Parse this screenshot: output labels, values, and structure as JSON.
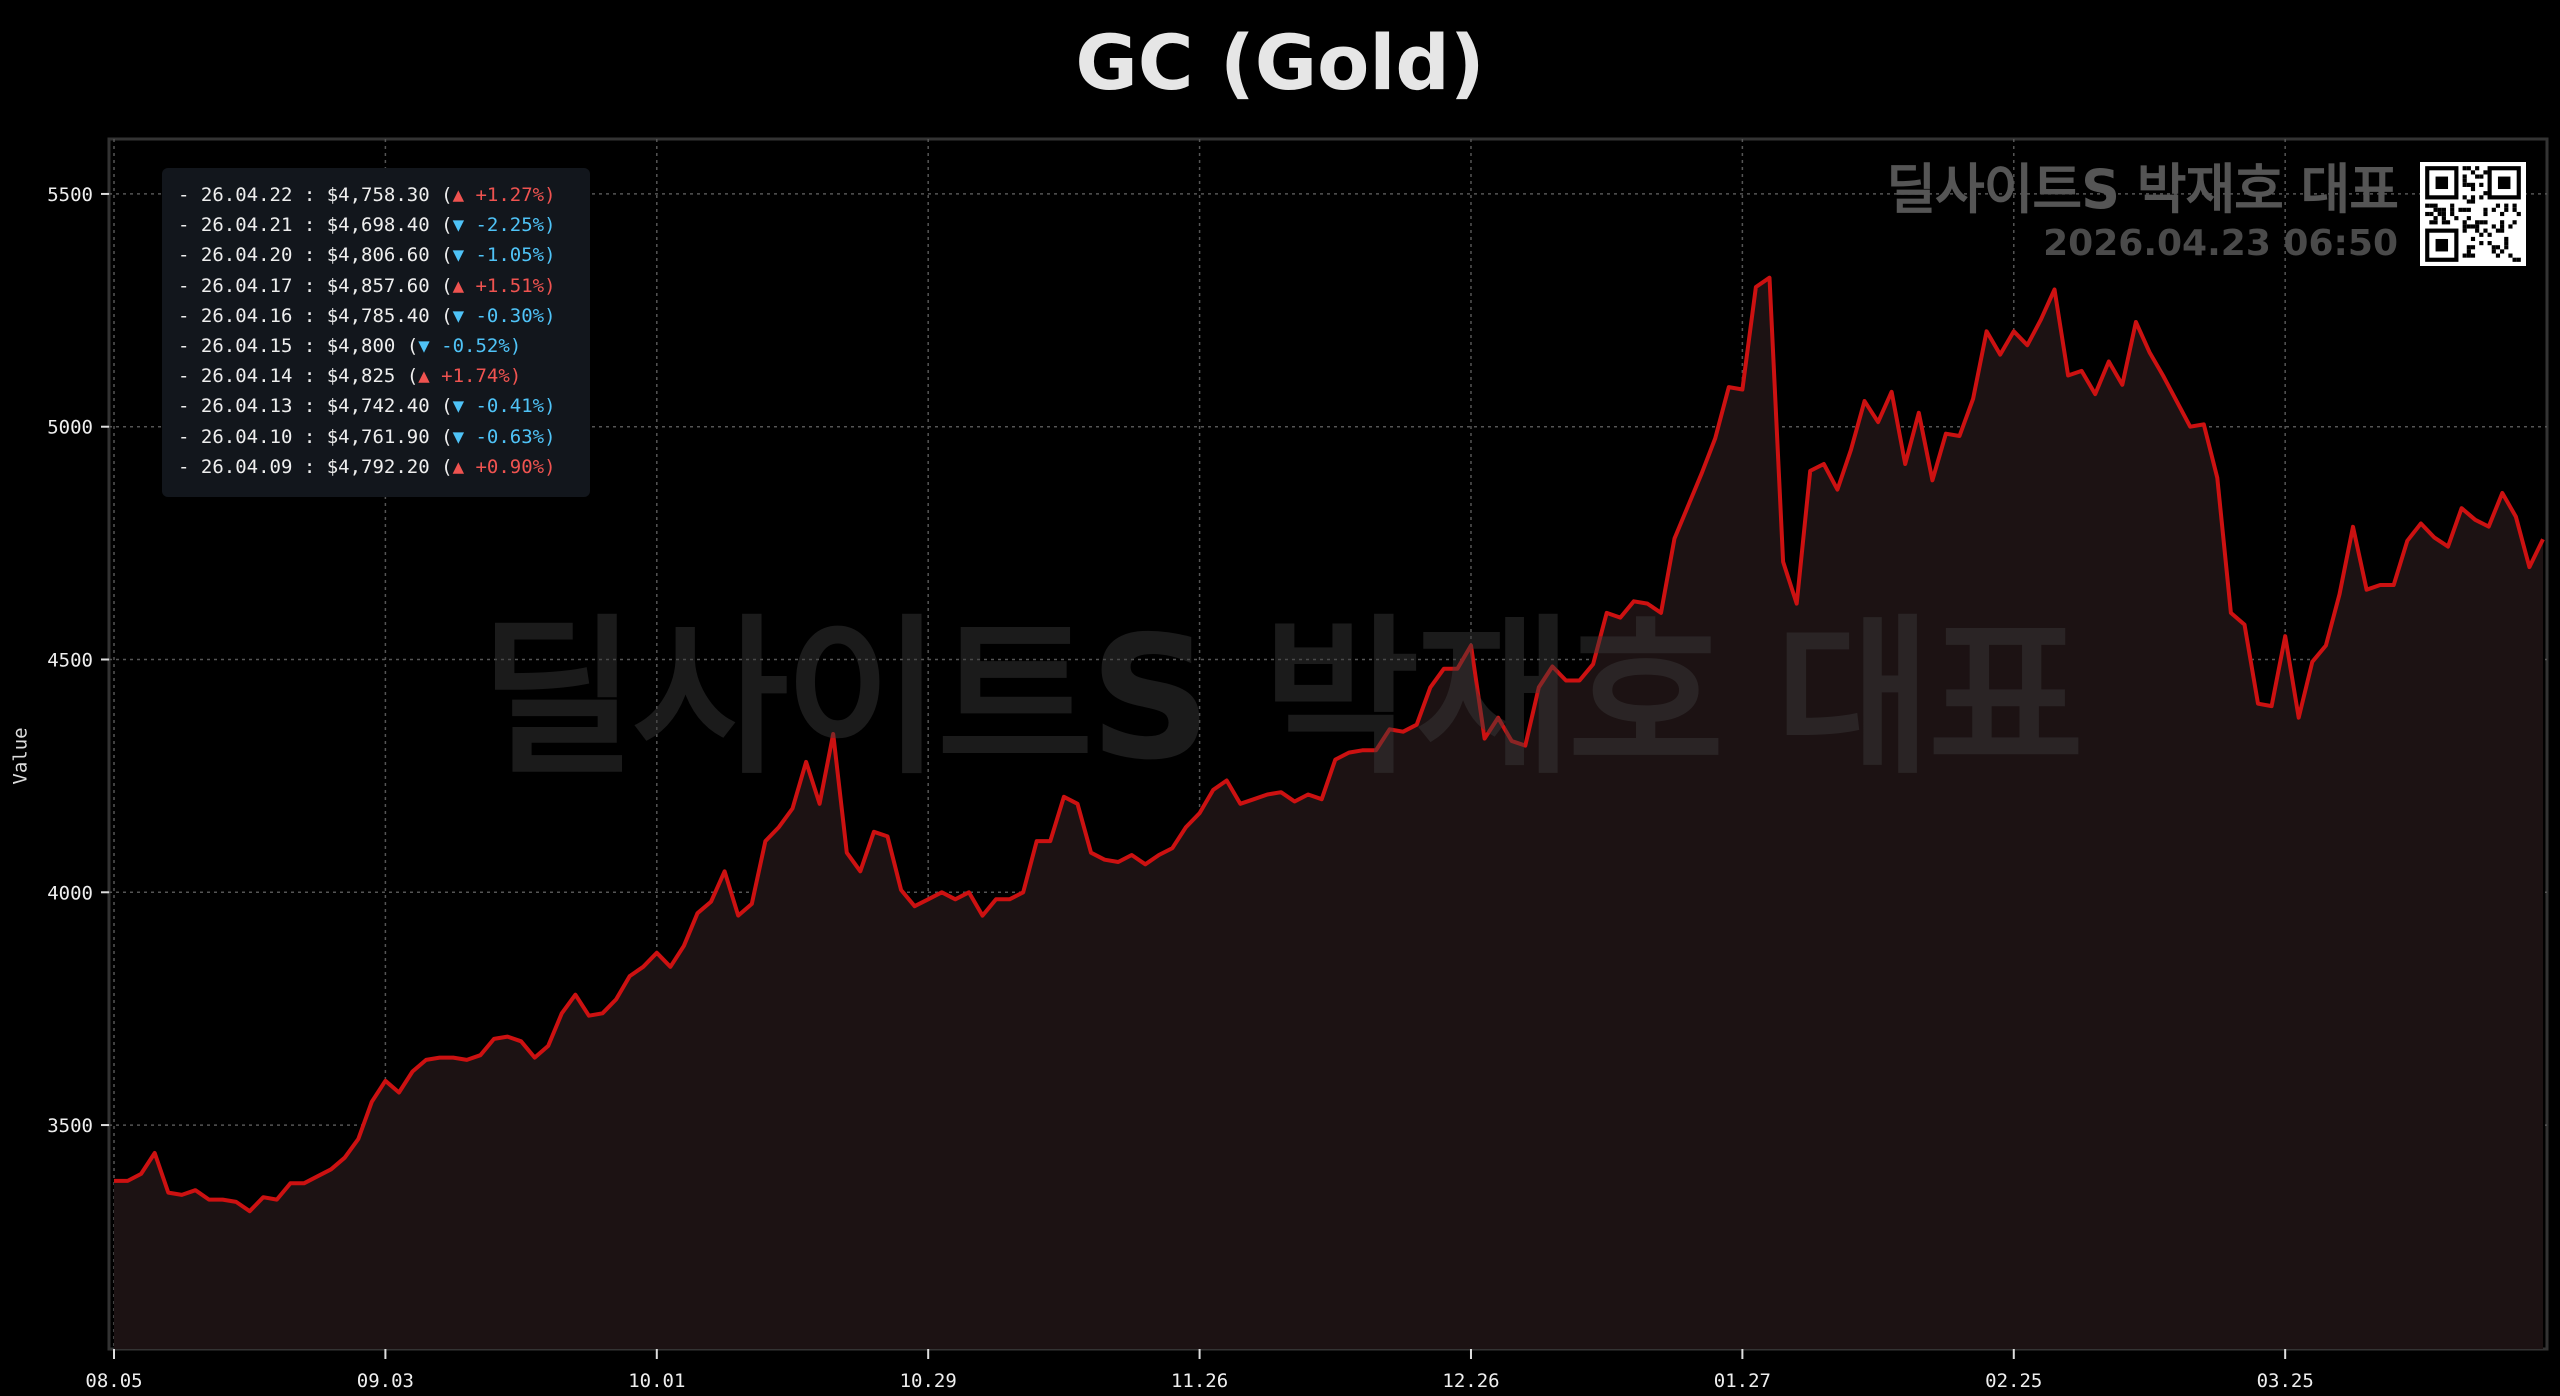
{
  "title": "GC (Gold)",
  "watermark": {
    "name": "딜사이트S 박재호 대표",
    "timestamp": "2026.04.23 06:50"
  },
  "legend": [
    {
      "date": "26.04.22",
      "price": "$4,758.30",
      "dir": "up",
      "arrow": "▲",
      "change": "+1.27%"
    },
    {
      "date": "26.04.21",
      "price": "$4,698.40",
      "dir": "down",
      "arrow": "▼",
      "change": "-2.25%"
    },
    {
      "date": "26.04.20",
      "price": "$4,806.60",
      "dir": "down",
      "arrow": "▼",
      "change": "-1.05%"
    },
    {
      "date": "26.04.17",
      "price": "$4,857.60",
      "dir": "up",
      "arrow": "▲",
      "change": "+1.51%"
    },
    {
      "date": "26.04.16",
      "price": "$4,785.40",
      "dir": "down",
      "arrow": "▼",
      "change": "-0.30%"
    },
    {
      "date": "26.04.15",
      "price": "$4,800",
      "dir": "down",
      "arrow": "▼",
      "change": "-0.52%"
    },
    {
      "date": "26.04.14",
      "price": "$4,825",
      "dir": "up",
      "arrow": "▲",
      "change": "+1.74%"
    },
    {
      "date": "26.04.13",
      "price": "$4,742.40",
      "dir": "down",
      "arrow": "▼",
      "change": "-0.41%"
    },
    {
      "date": "26.04.10",
      "price": "$4,761.90",
      "dir": "down",
      "arrow": "▼",
      "change": "-0.63%"
    },
    {
      "date": "26.04.09",
      "price": "$4,792.20",
      "dir": "up",
      "arrow": "▲",
      "change": "+0.90%"
    }
  ],
  "colors": {
    "line": "#cc1111",
    "fill": "#1c1213",
    "up": "#ef5350",
    "down": "#4fc3f7",
    "grid": "#555555"
  },
  "chart_data": {
    "type": "area",
    "title": "GC (Gold)",
    "xlabel": "",
    "ylabel": "Value",
    "ylim": [
      3019,
      5618
    ],
    "yticks": [
      3500,
      4000,
      4500,
      5000,
      5500
    ],
    "x_tick_labels": [
      "08.05",
      "09.03",
      "10.01",
      "10.29",
      "11.26",
      "12.26",
      "01.27",
      "02.25",
      "03.25"
    ],
    "grid": true,
    "values": [
      3380,
      3380,
      3395,
      3440,
      3355,
      3350,
      3360,
      3340,
      3340,
      3335,
      3315,
      3345,
      3340,
      3375,
      3375,
      3390,
      3405,
      3430,
      3470,
      3550,
      3595,
      3570,
      3615,
      3640,
      3645,
      3645,
      3640,
      3650,
      3685,
      3690,
      3680,
      3645,
      3670,
      3740,
      3780,
      3735,
      3740,
      3770,
      3820,
      3840,
      3870,
      3840,
      3885,
      3955,
      3980,
      4045,
      3950,
      3975,
      4110,
      4140,
      4180,
      4280,
      4190,
      4340,
      4085,
      4045,
      4130,
      4120,
      4005,
      3970,
      3985,
      4000,
      3985,
      4000,
      3950,
      3985,
      3985,
      4000,
      4110,
      4110,
      4205,
      4190,
      4085,
      4070,
      4065,
      4080,
      4060,
      4080,
      4095,
      4140,
      4170,
      4220,
      4240,
      4190,
      4200,
      4210,
      4215,
      4195,
      4210,
      4200,
      4285,
      4300,
      4305,
      4305,
      4350,
      4345,
      4360,
      4440,
      4480,
      4480,
      4530,
      4330,
      4375,
      4325,
      4315,
      4440,
      4485,
      4455,
      4455,
      4490,
      4600,
      4590,
      4625,
      4620,
      4600,
      4760,
      4830,
      4900,
      4975,
      5085,
      5080,
      5300,
      5320,
      4710,
      4620,
      4905,
      4920,
      4865,
      4950,
      5055,
      5010,
      5075,
      4920,
      5030,
      4885,
      4985,
      4980,
      5060,
      5205,
      5155,
      5205,
      5175,
      5230,
      5295,
      5110,
      5120,
      5070,
      5140,
      5090,
      5225,
      5160,
      5110,
      5055,
      5000,
      5005,
      4890,
      4600,
      4575,
      4405,
      4400,
      4550,
      4375,
      4495,
      4530,
      4640,
      4785,
      4650,
      4660,
      4660,
      4755,
      4792.2,
      4761.9,
      4742.4,
      4825,
      4800,
      4785.4,
      4857.6,
      4806.6,
      4698.4,
      4758.3
    ]
  }
}
